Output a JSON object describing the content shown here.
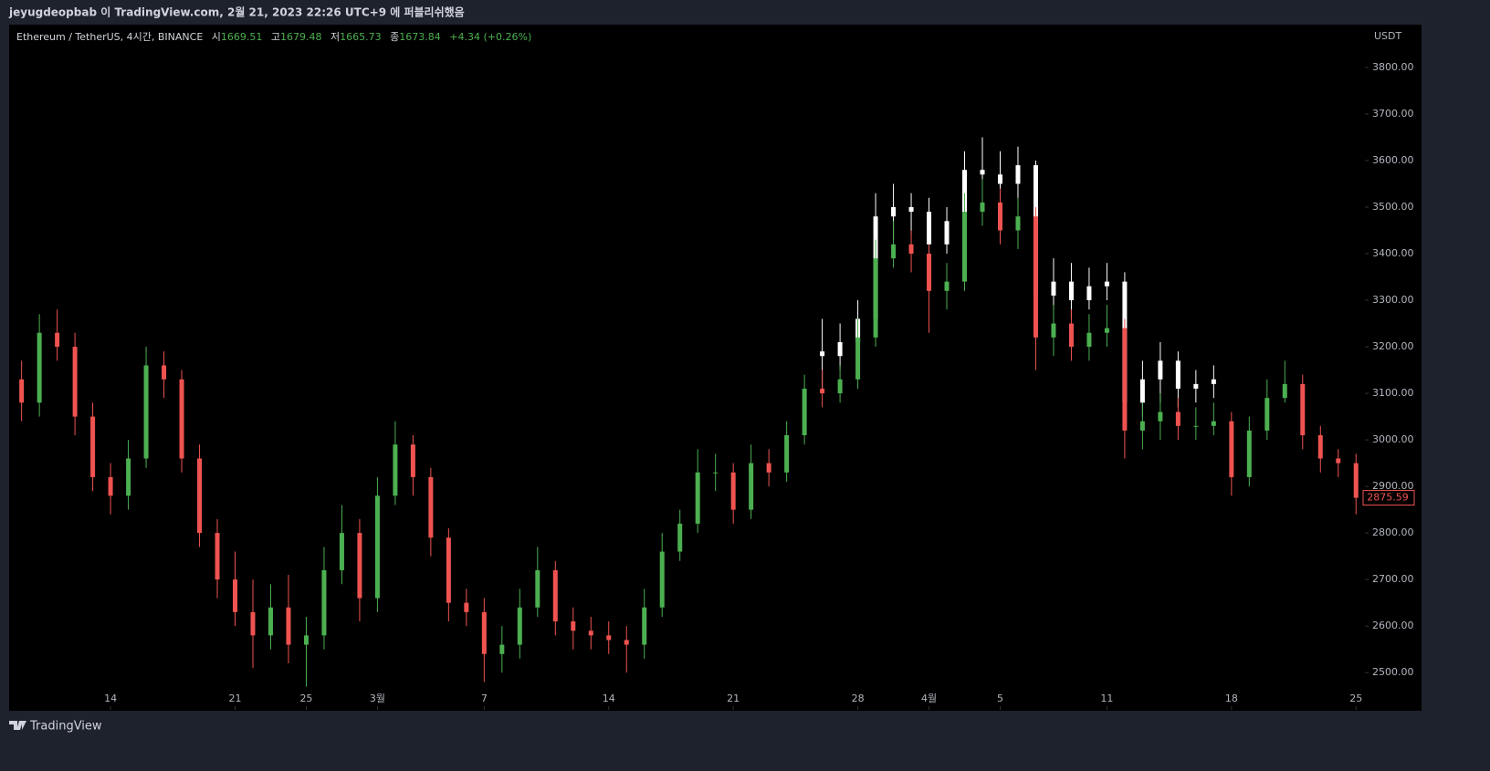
{
  "header": {
    "publisher": "jeyugdeopbab 이 TradingView.com, 2월 21, 2023 22:26 UTC+9 에 퍼블리쉬했음"
  },
  "legend": {
    "symbol": "Ethereum / TetherUS, 4시간, BINANCE",
    "open_label": "시",
    "open": "1669.51",
    "high_label": "고",
    "high": "1679.48",
    "low_label": "저",
    "low": "1665.73",
    "close_label": "종",
    "close": "1673.84",
    "change": "+4.34 (+0.26%)"
  },
  "footer": {
    "brand": "TradingView"
  },
  "chart_data": {
    "type": "candlestick",
    "y_axis_label": "USDT",
    "up_color": "#4caf50",
    "down_color": "#ef5350",
    "overlay_color": "#ffffff",
    "xlim": [
      8.3,
      84.5
    ],
    "xticks": [
      {
        "value": 14,
        "label": "14"
      },
      {
        "value": 21,
        "label": "21"
      },
      {
        "value": 25,
        "label": "25"
      },
      {
        "value": 29,
        "label": "3월"
      },
      {
        "value": 35,
        "label": "7"
      },
      {
        "value": 42,
        "label": "14"
      },
      {
        "value": 49,
        "label": "21"
      },
      {
        "value": 56,
        "label": "28"
      },
      {
        "value": 60,
        "label": "4월"
      },
      {
        "value": 64,
        "label": "5"
      },
      {
        "value": 70,
        "label": "11"
      },
      {
        "value": 77,
        "label": "18"
      },
      {
        "value": 84,
        "label": "25"
      }
    ],
    "ylim": [
      2420,
      3892
    ],
    "yticks": [
      {
        "value": 2500,
        "label": "2500.00"
      },
      {
        "value": 2600,
        "label": "2600.00"
      },
      {
        "value": 2700,
        "label": "2700.00"
      },
      {
        "value": 2800,
        "label": "2800.00"
      },
      {
        "value": 2900,
        "label": "2900.00"
      },
      {
        "value": 3000,
        "label": "3000.00"
      },
      {
        "value": 3100,
        "label": "3100.00"
      },
      {
        "value": 3200,
        "label": "3200.00"
      },
      {
        "value": 3300,
        "label": "3300.00"
      },
      {
        "value": 3400,
        "label": "3400.00"
      },
      {
        "value": 3500,
        "label": "3500.00"
      },
      {
        "value": 3600,
        "label": "3600.00"
      },
      {
        "value": 3700,
        "label": "3700.00"
      },
      {
        "value": 3800,
        "label": "3800.00"
      }
    ],
    "x": [
      9,
      10,
      11,
      12,
      13,
      14,
      15,
      16,
      17,
      18,
      19,
      20,
      21,
      22,
      23,
      24,
      25,
      26,
      27,
      28,
      29,
      30,
      31,
      32,
      33,
      34,
      35,
      36,
      37,
      38,
      39,
      40,
      41,
      42,
      43,
      44,
      45,
      46,
      47,
      48,
      49,
      50,
      51,
      52,
      53,
      54,
      55,
      56,
      57,
      58,
      59,
      60,
      61,
      62,
      63,
      64,
      65,
      66,
      67,
      68,
      69,
      70,
      71,
      72,
      73,
      74,
      75,
      76,
      77,
      78,
      79,
      80,
      81,
      82,
      83,
      84
    ],
    "open": [
      3130,
      3080,
      3230,
      3200,
      3050,
      2920,
      2880,
      2960,
      3160,
      3130,
      2960,
      2800,
      2700,
      2630,
      2580,
      2640,
      2560,
      2580,
      2720,
      2800,
      2660,
      2880,
      2990,
      2920,
      2790,
      2650,
      2630,
      2540,
      2560,
      2640,
      2720,
      2610,
      2590,
      2580,
      2570,
      2560,
      2640,
      2760,
      2820,
      2930,
      2930,
      2850,
      2950,
      2930,
      3010,
      3110,
      3100,
      3130,
      3220,
      3390,
      3420,
      3400,
      3320,
      3340,
      3490,
      3510,
      3450,
      3480,
      3220,
      3250,
      3200,
      3230,
      3240,
      3020,
      3040,
      3060,
      3030,
      3030,
      3040,
      2920,
      3020,
      3090,
      3120,
      3010,
      2960,
      2950
    ],
    "high": [
      3170,
      3270,
      3280,
      3230,
      3080,
      2950,
      3000,
      3200,
      3190,
      3150,
      2990,
      2830,
      2760,
      2700,
      2690,
      2710,
      2620,
      2770,
      2860,
      2830,
      2920,
      3040,
      3010,
      2940,
      2810,
      2680,
      2660,
      2600,
      2680,
      2770,
      2740,
      2640,
      2620,
      2610,
      2600,
      2680,
      2800,
      2850,
      2980,
      2970,
      2950,
      2990,
      2980,
      3040,
      3140,
      3150,
      3160,
      3260,
      3430,
      3470,
      3450,
      3420,
      3380,
      3530,
      3560,
      3540,
      3520,
      3500,
      3290,
      3280,
      3270,
      3290,
      3260,
      3080,
      3100,
      3090,
      3070,
      3080,
      3060,
      3050,
      3130,
      3170,
      3140,
      3030,
      2980,
      2970
    ],
    "low": [
      3040,
      3050,
      3170,
      3010,
      2890,
      2840,
      2850,
      2940,
      3090,
      2930,
      2770,
      2660,
      2600,
      2510,
      2550,
      2520,
      2470,
      2550,
      2690,
      2610,
      2630,
      2860,
      2880,
      2750,
      2610,
      2600,
      2480,
      2500,
      2530,
      2620,
      2580,
      2550,
      2550,
      2540,
      2500,
      2530,
      2620,
      2740,
      2800,
      2890,
      2820,
      2830,
      2900,
      2910,
      2990,
      3070,
      3080,
      3110,
      3200,
      3370,
      3360,
      3230,
      3280,
      3320,
      3460,
      3420,
      3410,
      3150,
      3180,
      3170,
      3170,
      3200,
      2960,
      2980,
      3000,
      3000,
      3000,
      3010,
      2880,
      2900,
      3000,
      3080,
      2980,
      2930,
      2920,
      2840
    ],
    "close": [
      3080,
      3230,
      3200,
      3050,
      2920,
      2880,
      2960,
      3160,
      3130,
      2960,
      2800,
      2700,
      2630,
      2580,
      2640,
      2560,
      2580,
      2720,
      2800,
      2660,
      2880,
      2990,
      2920,
      2790,
      2650,
      2630,
      2540,
      2560,
      2640,
      2720,
      2610,
      2590,
      2580,
      2570,
      2560,
      2640,
      2760,
      2820,
      2930,
      2930,
      2850,
      2950,
      2930,
      3010,
      3110,
      3100,
      3130,
      3220,
      3390,
      3420,
      3400,
      3320,
      3340,
      3490,
      3510,
      3450,
      3480,
      3220,
      3250,
      3200,
      3230,
      3240,
      3020,
      3040,
      3060,
      3030,
      3030,
      3040,
      2920,
      3020,
      3090,
      3120,
      3010,
      2960,
      2950,
      2875.59
    ],
    "overlay": {
      "x": [
        54,
        55,
        56,
        57,
        58,
        59,
        60,
        61,
        62,
        63,
        64,
        65,
        66,
        67,
        68,
        69,
        70,
        71,
        72,
        73,
        74,
        75,
        76
      ],
      "open": [
        3190,
        3180,
        3210,
        3260,
        3480,
        3500,
        3490,
        3420,
        3470,
        3580,
        3570,
        3550,
        3590,
        3310,
        3340,
        3300,
        3330,
        3340,
        3080,
        3130,
        3170,
        3110,
        3120
      ],
      "high": [
        3260,
        3250,
        3300,
        3530,
        3550,
        3530,
        3520,
        3500,
        3620,
        3650,
        3620,
        3630,
        3600,
        3390,
        3380,
        3370,
        3380,
        3360,
        3170,
        3210,
        3190,
        3150,
        3160
      ],
      "low": [
        3100,
        3150,
        3200,
        3250,
        3430,
        3440,
        3380,
        3400,
        3440,
        3520,
        3500,
        3490,
        3260,
        3280,
        3260,
        3280,
        3300,
        3020,
        3050,
        3080,
        3070,
        3080,
        3090
      ],
      "close": [
        3180,
        3210,
        3260,
        3480,
        3500,
        3490,
        3420,
        3470,
        3580,
        3570,
        3550,
        3590,
        3310,
        3340,
        3300,
        3330,
        3340,
        3080,
        3130,
        3170,
        3110,
        3120,
        3130
      ]
    }
  }
}
